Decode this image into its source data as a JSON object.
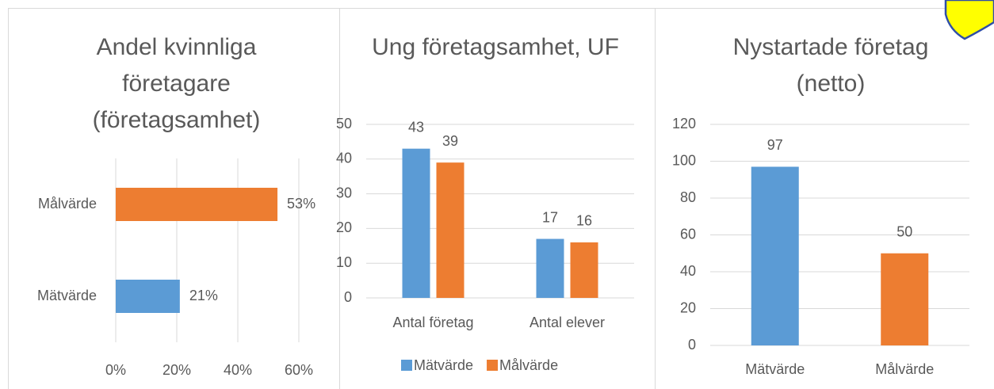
{
  "chart_data": [
    {
      "type": "bar",
      "orientation": "horizontal",
      "title": "Andel kvinnliga företagare (företagsamhet)",
      "categories": [
        "Målvärde",
        "Mätvärde"
      ],
      "values": [
        53,
        21
      ],
      "value_labels": [
        "53%",
        "21%"
      ],
      "colors": [
        "#ed7d31",
        "#5b9bd5"
      ],
      "xlim": [
        0,
        60
      ],
      "xticks": [
        {
          "value": 0,
          "label": "0%"
        },
        {
          "value": 20,
          "label": "20%"
        },
        {
          "value": 40,
          "label": "40%"
        },
        {
          "value": 60,
          "label": "60%"
        }
      ],
      "grid": true
    },
    {
      "type": "bar",
      "title": "Ung företagsamhet, UF",
      "categories": [
        "Antal företag",
        "Antal elever"
      ],
      "series": [
        {
          "name": "Mätvärde",
          "color": "#5b9bd5",
          "values": [
            43,
            17
          ]
        },
        {
          "name": "Målvärde",
          "color": "#ed7d31",
          "values": [
            39,
            16
          ]
        }
      ],
      "ylim": [
        0,
        50
      ],
      "yticks": [
        0,
        10,
        20,
        30,
        40,
        50
      ],
      "grid": true,
      "legend": "bottom"
    },
    {
      "type": "bar",
      "title": "Nystartade företag (netto)",
      "categories": [
        "Mätvärde",
        "Målvärde"
      ],
      "values": [
        97,
        50
      ],
      "colors": [
        "#5b9bd5",
        "#ed7d31"
      ],
      "ylim": [
        0,
        120
      ],
      "yticks": [
        0,
        20,
        40,
        60,
        80,
        100,
        120
      ],
      "grid": true
    }
  ]
}
